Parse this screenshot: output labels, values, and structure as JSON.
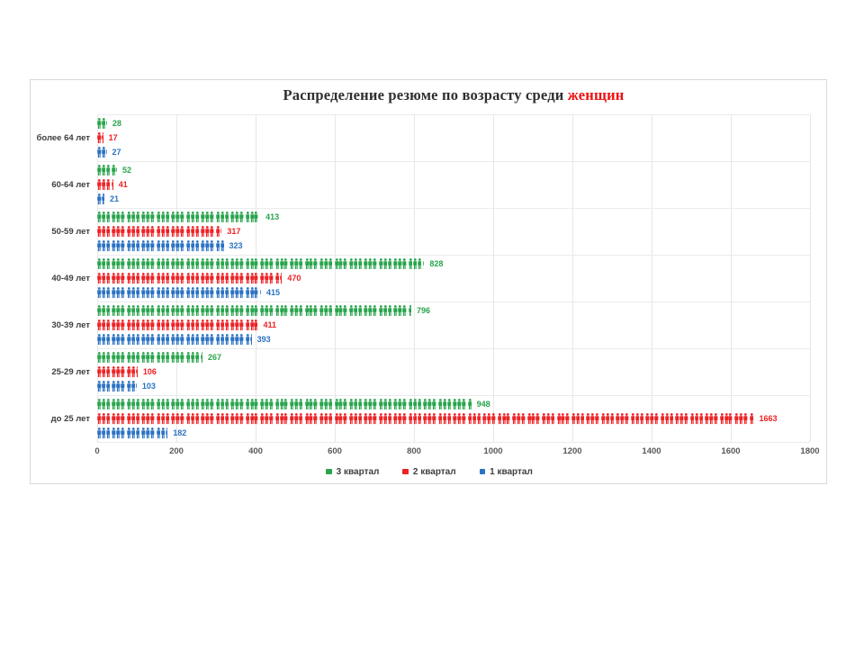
{
  "chart_data": {
    "type": "bar",
    "variant": "pictogram",
    "icon": "person-icon",
    "title": "Распределение резюме по возрасту среди женщин",
    "title_main": "Распределение резюме по возрасту среди ",
    "title_highlight": "женщин",
    "title_highlight_color": "#ee1111",
    "unit_per_icon": 12.5,
    "grid": true,
    "legend_position": "bottom",
    "x_axis": {
      "min": 0,
      "max": 1800,
      "step": 200,
      "ticks": [
        0,
        200,
        400,
        600,
        800,
        1000,
        1200,
        1400,
        1600,
        1800
      ]
    },
    "categories": [
      "более 64 лет",
      "60-64 лет",
      "50-59 лет",
      "40-49 лет",
      "30-39 лет",
      "25-29 лет",
      "до 25 лет"
    ],
    "series": [
      {
        "name": "3 квартал",
        "color": "#28a44c",
        "values": [
          28,
          52,
          413,
          828,
          796,
          267,
          948
        ]
      },
      {
        "name": "2 квартал",
        "color": "#ee2124",
        "values": [
          17,
          41,
          317,
          470,
          411,
          106,
          1663
        ]
      },
      {
        "name": "1 квартал",
        "color": "#2a72c3",
        "values": [
          27,
          21,
          323,
          415,
          393,
          103,
          182
        ]
      }
    ],
    "legend": [
      "3 квартал",
      "2 квартал",
      "1 квартал"
    ]
  }
}
